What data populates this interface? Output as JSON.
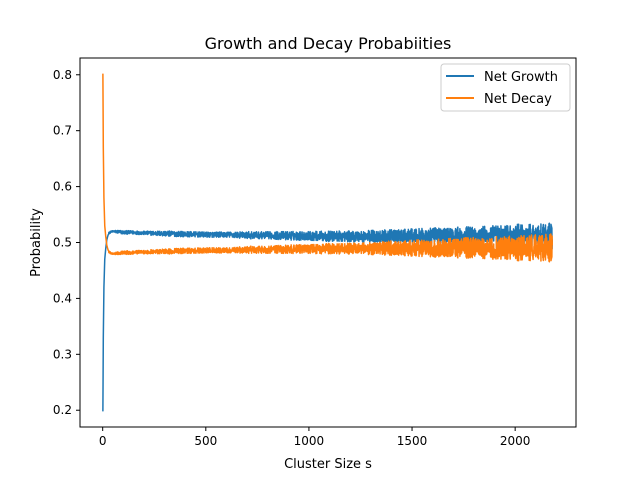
{
  "chart_data": {
    "type": "line",
    "title": "Growth and Decay Probabiities",
    "xlabel": "Cluster Size s",
    "ylabel": "Probability",
    "xlim": [
      -110,
      2295
    ],
    "ylim": [
      0.17,
      0.83
    ],
    "xticks": [
      0,
      500,
      1000,
      1500,
      2000
    ],
    "yticks": [
      0.2,
      0.3,
      0.4,
      0.5,
      0.6,
      0.7,
      0.8
    ],
    "grid": false,
    "legend_position": "top-right",
    "series": [
      {
        "name": "Net Growth",
        "color": "#1f77b4",
        "x": [
          1,
          3,
          6,
          10,
          15,
          20,
          25,
          30,
          40,
          50,
          75,
          100,
          150,
          200,
          300,
          400,
          500,
          600,
          700,
          800,
          900,
          1000,
          1100,
          1200,
          1300,
          1400,
          1500,
          1600,
          1700,
          1800,
          1900,
          2000,
          2100,
          2180
        ],
        "y": [
          0.198,
          0.33,
          0.42,
          0.47,
          0.49,
          0.505,
          0.512,
          0.517,
          0.519,
          0.52,
          0.519,
          0.518,
          0.518,
          0.517,
          0.516,
          0.515,
          0.514,
          0.514,
          0.513,
          0.513,
          0.512,
          0.512,
          0.511,
          0.511,
          0.511,
          0.51,
          0.51,
          0.51,
          0.51,
          0.51,
          0.51,
          0.51,
          0.51,
          0.51
        ],
        "noise_amplitude": [
          0,
          0,
          0,
          0,
          0,
          0,
          0,
          0.001,
          0.001,
          0.001,
          0.002,
          0.002,
          0.002,
          0.002,
          0.003,
          0.003,
          0.003,
          0.003,
          0.004,
          0.004,
          0.005,
          0.005,
          0.006,
          0.006,
          0.007,
          0.008,
          0.009,
          0.01,
          0.011,
          0.012,
          0.013,
          0.014,
          0.015,
          0.016
        ]
      },
      {
        "name": "Net Decay",
        "color": "#ff7f0e",
        "x": [
          1,
          3,
          6,
          10,
          15,
          20,
          25,
          30,
          40,
          50,
          75,
          100,
          150,
          200,
          300,
          400,
          500,
          600,
          700,
          800,
          900,
          1000,
          1100,
          1200,
          1300,
          1400,
          1500,
          1600,
          1700,
          1800,
          1900,
          2000,
          2100,
          2180
        ],
        "y": [
          0.802,
          0.67,
          0.58,
          0.53,
          0.51,
          0.495,
          0.488,
          0.483,
          0.481,
          0.48,
          0.481,
          0.482,
          0.482,
          0.483,
          0.484,
          0.485,
          0.486,
          0.486,
          0.487,
          0.487,
          0.488,
          0.488,
          0.489,
          0.489,
          0.489,
          0.49,
          0.49,
          0.49,
          0.49,
          0.49,
          0.49,
          0.49,
          0.49,
          0.49
        ],
        "noise_amplitude": [
          0,
          0,
          0,
          0,
          0,
          0,
          0,
          0.001,
          0.001,
          0.001,
          0.002,
          0.002,
          0.002,
          0.002,
          0.003,
          0.003,
          0.003,
          0.003,
          0.004,
          0.004,
          0.005,
          0.005,
          0.006,
          0.006,
          0.007,
          0.008,
          0.009,
          0.01,
          0.011,
          0.012,
          0.013,
          0.014,
          0.015,
          0.016
        ]
      }
    ]
  }
}
